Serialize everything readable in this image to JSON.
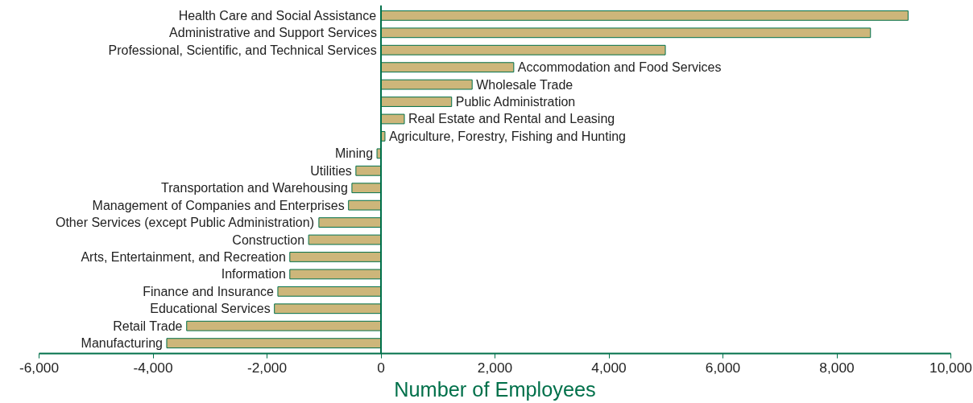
{
  "chart_data": {
    "type": "bar",
    "orientation": "horizontal",
    "xlabel": "Number of Employees",
    "categories": [
      "Health Care and Social Assistance",
      "Administrative and Support Services",
      "Professional, Scientific, and Technical Services",
      "Accommodation and Food Services",
      "Wholesale Trade",
      "Public Administration",
      "Real Estate and Rental and Leasing",
      "Agriculture, Forestry, Fishing and Hunting",
      "Mining",
      "Utilities",
      "Transportation and Warehousing",
      "Management of Companies and Enterprises",
      "Other Services (except Public Administration)",
      "Construction",
      "Arts, Entertainment, and Recreation",
      "Information",
      "Finance and Insurance",
      "Educational Services",
      "Retail Trade",
      "Manufacturing"
    ],
    "values": [
      9250,
      8590,
      4990,
      2330,
      1600,
      1240,
      410,
      70,
      -70,
      -440,
      -510,
      -570,
      -1090,
      -1270,
      -1600,
      -1600,
      -1810,
      -1870,
      -3410,
      -3760
    ],
    "color": "#cdb67a",
    "xlim": [
      -6000,
      10000
    ],
    "xticks": [
      {
        "value": -6000,
        "label": "-6,000"
      },
      {
        "value": -4000,
        "label": "-4,000"
      },
      {
        "value": -2000,
        "label": "-2,000"
      },
      0,
      {
        "value": 2000,
        "label": "2,000"
      },
      {
        "value": 4000,
        "label": "4,000"
      },
      {
        "value": 6000,
        "label": "6,000"
      },
      {
        "value": 8000,
        "label": "8,000"
      },
      {
        "value": 10000,
        "label": "10,000"
      }
    ],
    "tick_labels": "x",
    "grid": false
  }
}
